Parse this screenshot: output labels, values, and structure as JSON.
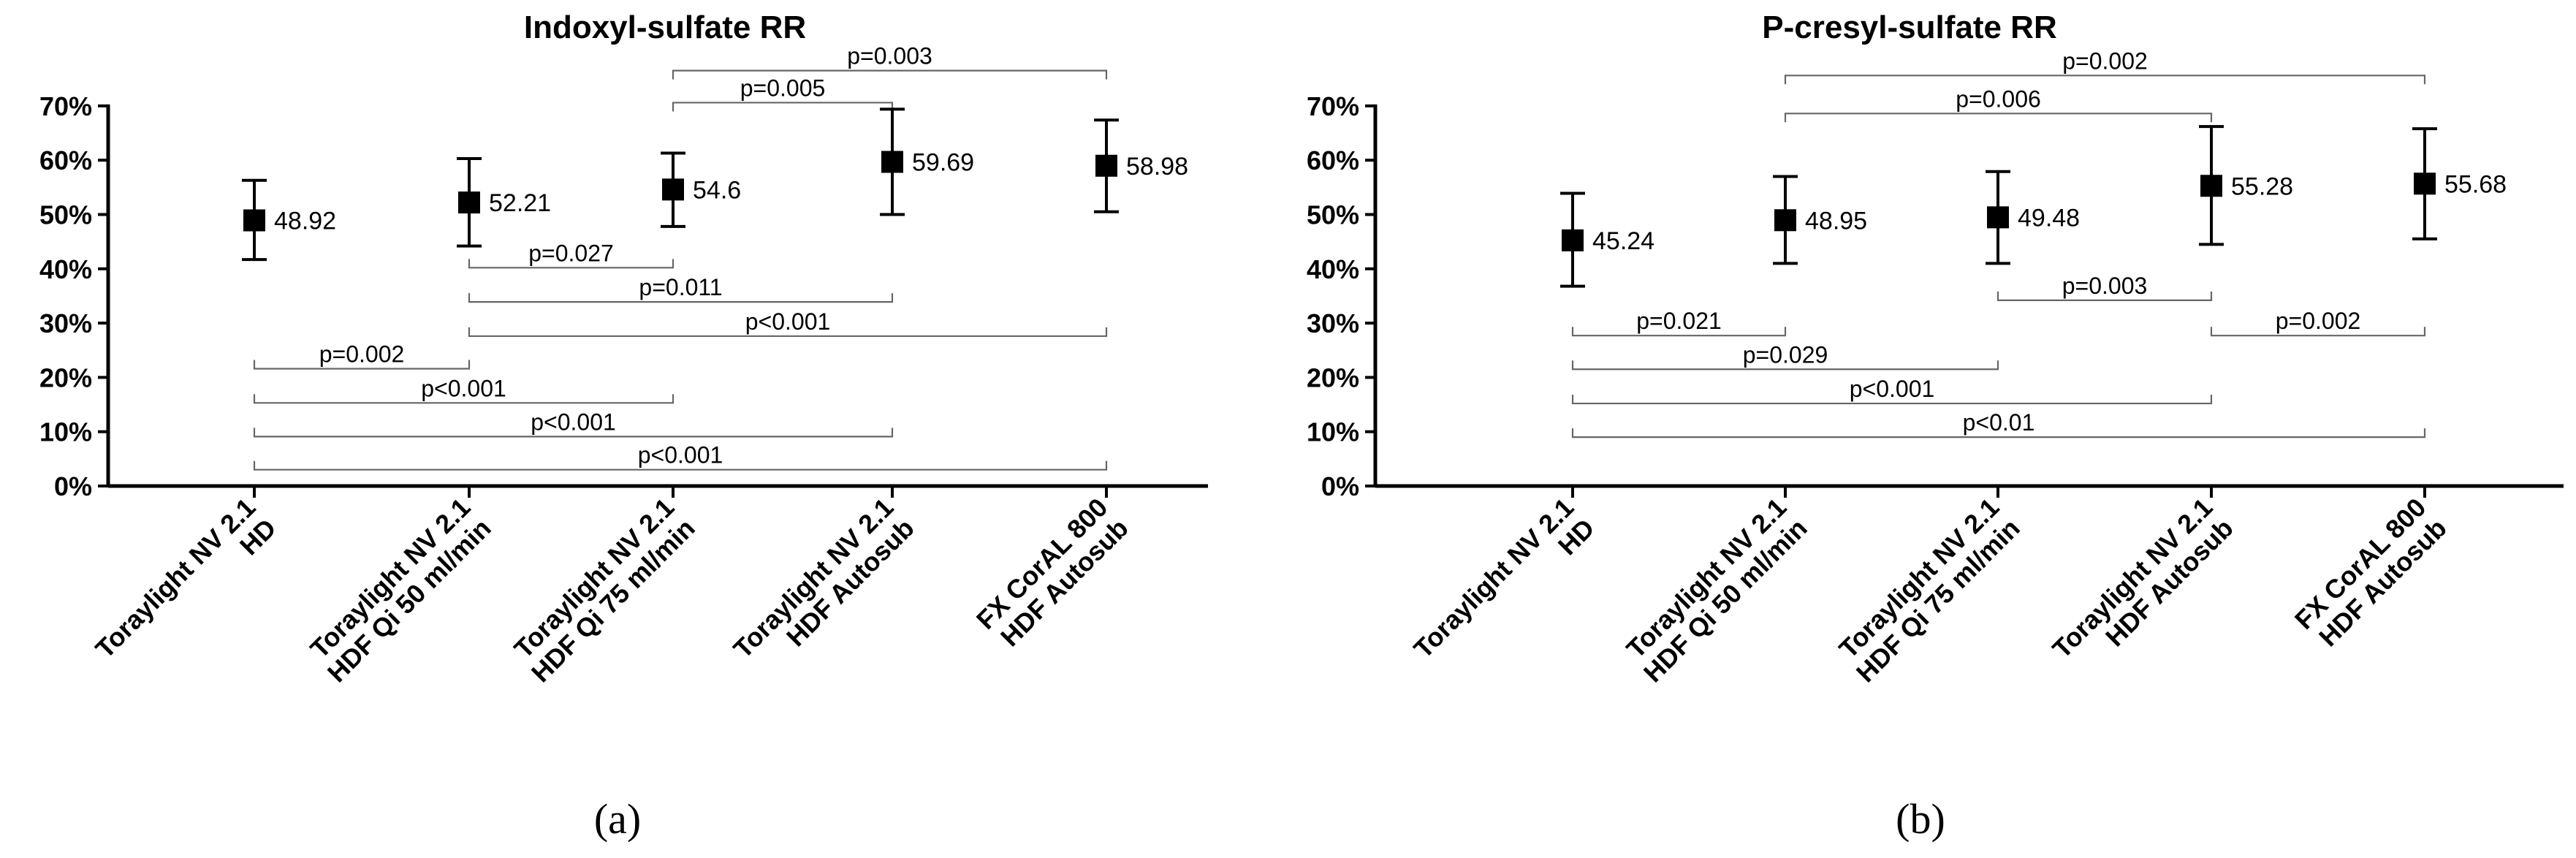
{
  "panel_labels": [
    "(a)",
    "(b)"
  ],
  "chart_data": [
    {
      "type": "scatter",
      "title": "Indoxyl-sulfate RR",
      "xlabel": "",
      "ylabel": "",
      "ylim": [
        0,
        70
      ],
      "yticks": [
        "0%",
        "10%",
        "20%",
        "30%",
        "40%",
        "50%",
        "60%",
        "70%"
      ],
      "categories": [
        [
          "Toraylight NV 2.1",
          "HD"
        ],
        [
          "Toraylight NV 2.1",
          "HDF Qi 50 ml/min"
        ],
        [
          "Toraylight NV 2.1",
          "HDF Qi 75 ml/min"
        ],
        [
          "Toraylight NV 2.1",
          "HDF Autosub"
        ],
        [
          "FX CorAL 800",
          "HDF Autosub"
        ]
      ],
      "values": [
        48.92,
        52.21,
        54.6,
        59.69,
        58.98
      ],
      "value_labels": [
        "48.92",
        "52.21",
        "54.6",
        "59.69",
        "58.98"
      ],
      "error_low": [
        41.7,
        44.2,
        47.8,
        50.0,
        50.5
      ],
      "error_high": [
        56.3,
        60.3,
        61.3,
        69.4,
        67.4
      ],
      "grid": false,
      "comparisons": [
        {
          "from": 2,
          "to": 4,
          "label": "p=0.003",
          "y": 76.5
        },
        {
          "from": 2,
          "to": 3,
          "label": "p=0.005",
          "y": 70.6
        },
        {
          "from": 1,
          "to": 2,
          "label": "p=0.027",
          "y": 40.2
        },
        {
          "from": 1,
          "to": 3,
          "label": "p=0.011",
          "y": 33.9
        },
        {
          "from": 1,
          "to": 4,
          "label": "p<0.001",
          "y": 27.6
        },
        {
          "from": 0,
          "to": 1,
          "label": "p=0.002",
          "y": 21.6
        },
        {
          "from": 0,
          "to": 2,
          "label": "p<0.001",
          "y": 15.3
        },
        {
          "from": 0,
          "to": 3,
          "label": "p<0.001",
          "y": 9.1
        },
        {
          "from": 0,
          "to": 4,
          "label": "p<0.001",
          "y": 3.0
        }
      ]
    },
    {
      "type": "scatter",
      "title": "P-cresyl-sulfate RR",
      "xlabel": "",
      "ylabel": "",
      "ylim": [
        0,
        70
      ],
      "yticks": [
        "0%",
        "10%",
        "20%",
        "30%",
        "40%",
        "50%",
        "60%",
        "70%"
      ],
      "categories": [
        [
          "Toraylight NV 2.1",
          "HD"
        ],
        [
          "Toraylight NV 2.1",
          "HDF Qi 50 ml/min"
        ],
        [
          "Toraylight NV 2.1",
          "HDF Qi 75 ml/min"
        ],
        [
          "Toraylight NV 2.1",
          "HDF Autosub"
        ],
        [
          "FX CorAL 800",
          "HDF Autosub"
        ]
      ],
      "values": [
        45.24,
        48.95,
        49.48,
        55.28,
        55.68
      ],
      "value_labels": [
        "45.24",
        "48.95",
        "49.48",
        "55.28",
        "55.68"
      ],
      "error_low": [
        36.8,
        41.0,
        41.0,
        44.5,
        45.5
      ],
      "error_high": [
        53.9,
        57.0,
        57.9,
        66.2,
        65.8
      ],
      "grid": false,
      "comparisons": [
        {
          "from": 1,
          "to": 4,
          "label": "p=0.002",
          "y": 75.6
        },
        {
          "from": 1,
          "to": 3,
          "label": "p=0.006",
          "y": 68.6
        },
        {
          "from": 3,
          "to": 4,
          "label": "p=0.002",
          "y": 27.7
        },
        {
          "from": 2,
          "to": 3,
          "label": "p=0.003",
          "y": 34.2
        },
        {
          "from": 0,
          "to": 1,
          "label": "p=0.021",
          "y": 27.7
        },
        {
          "from": 0,
          "to": 2,
          "label": "p=0.029",
          "y": 21.5
        },
        {
          "from": 0,
          "to": 3,
          "label": "p<0.001",
          "y": 15.2
        },
        {
          "from": 0,
          "to": 4,
          "label": "p<0.01",
          "y": 9.0
        }
      ]
    }
  ]
}
